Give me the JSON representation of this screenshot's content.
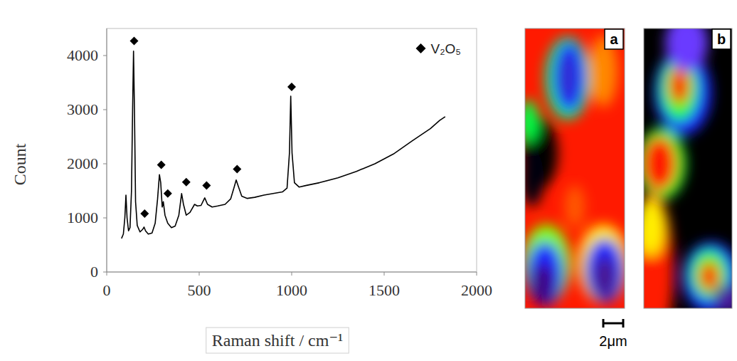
{
  "chart_data": {
    "type": "line",
    "x_label": "Raman shift / cm⁻¹",
    "y_label": "Count",
    "xlim": [
      0,
      2000
    ],
    "ylim": [
      0,
      4500
    ],
    "xticks": [
      0,
      500,
      1000,
      1500,
      2000
    ],
    "yticks": [
      0,
      1000,
      2000,
      3000,
      4000
    ],
    "grid": false,
    "legend": "upper right",
    "series": [
      {
        "type": "line",
        "color": "#000000",
        "x": [
          80,
          90,
          98,
          104,
          110,
          118,
          126,
          134,
          140,
          145,
          150,
          156,
          165,
          180,
          195,
          202,
          210,
          225,
          245,
          262,
          275,
          285,
          292,
          300,
          306,
          315,
          330,
          350,
          370,
          390,
          405,
          415,
          430,
          450,
          475,
          490,
          510,
          530,
          545,
          570,
          600,
          640,
          670,
          690,
          700,
          710,
          730,
          760,
          800,
          850,
          900,
          950,
          975,
          988,
          995,
          1002,
          1015,
          1040,
          1080,
          1150,
          1250,
          1350,
          1450,
          1550,
          1650,
          1750,
          1800,
          1830
        ],
        "values": [
          620,
          700,
          1000,
          1420,
          1000,
          760,
          820,
          1500,
          3000,
          4080,
          3000,
          1300,
          860,
          740,
          790,
          830,
          760,
          700,
          720,
          900,
          1350,
          1800,
          1650,
          1200,
          1300,
          1050,
          900,
          820,
          850,
          1050,
          1450,
          1250,
          1050,
          1100,
          1250,
          1220,
          1230,
          1370,
          1250,
          1200,
          1220,
          1250,
          1350,
          1580,
          1700,
          1600,
          1400,
          1360,
          1380,
          1420,
          1450,
          1480,
          1550,
          2200,
          3250,
          2200,
          1650,
          1570,
          1600,
          1650,
          1740,
          1860,
          2000,
          2180,
          2420,
          2650,
          2800,
          2870
        ]
      },
      {
        "type": "scatter",
        "name": "V₂O₅",
        "color": "#000000",
        "marker": "diamond",
        "x": [
          148,
          205,
          295,
          330,
          430,
          540,
          705,
          1000
        ],
        "values": [
          4270,
          1080,
          1980,
          1450,
          1660,
          1600,
          1900,
          3420
        ]
      }
    ]
  },
  "panels": [
    {
      "label": "a"
    },
    {
      "label": "b"
    }
  ],
  "scale_bar": "2μm"
}
